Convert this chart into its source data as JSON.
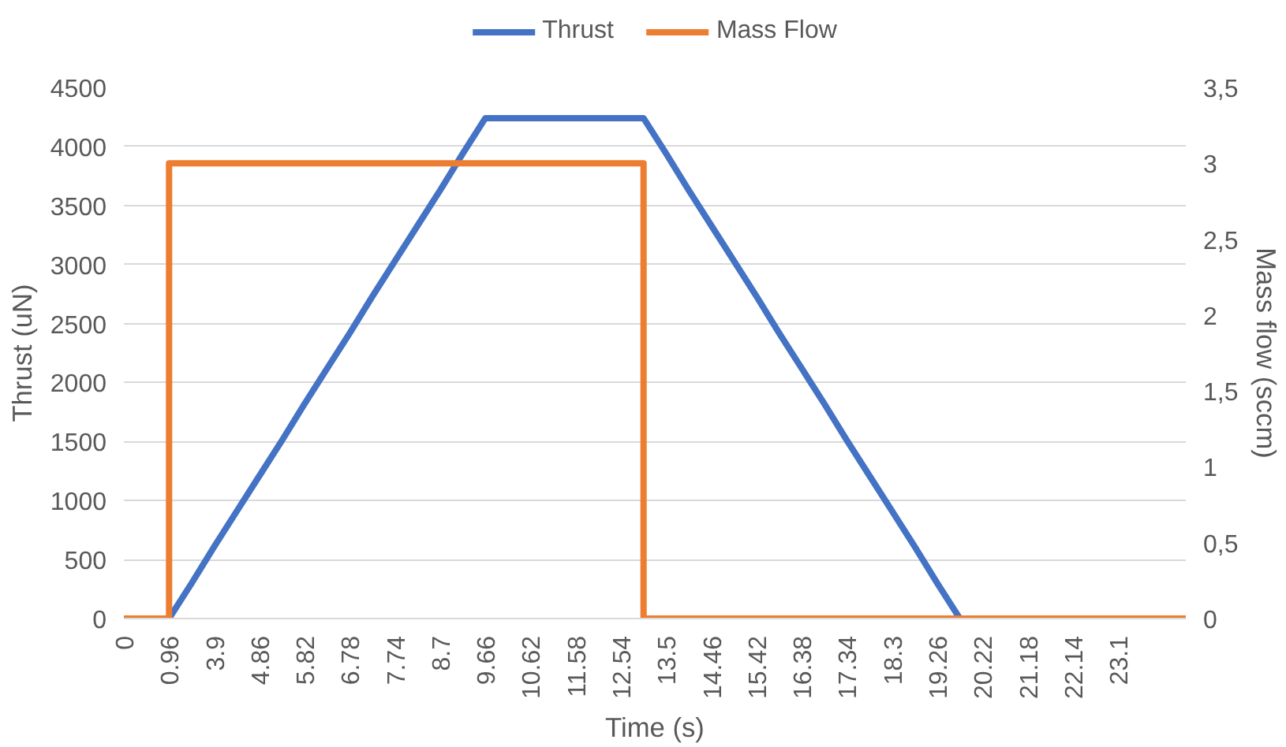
{
  "chart_data": {
    "type": "line",
    "xlabel": "Time (s)",
    "ylabel": "Thrust (uN)",
    "y2label": "Mass flow (sccm)",
    "categories": [
      "0",
      null,
      "0.96",
      null,
      "3.9",
      null,
      "4.86",
      null,
      "5.82",
      null,
      "6.78",
      null,
      "7.74",
      null,
      "8.7",
      null,
      "9.66",
      null,
      "10.62",
      null,
      "11.58",
      null,
      "12.54",
      null,
      "13.5",
      null,
      "14.46",
      null,
      "15.42",
      null,
      "16.38",
      null,
      "17.34",
      null,
      "18.3",
      null,
      "19.26",
      null,
      "20.22",
      null,
      "21.18",
      null,
      "22.14",
      null,
      "23.1",
      null,
      null,
      null
    ],
    "series": [
      {
        "name": "Thrust",
        "color": "#4472c4",
        "values": [
          null,
          null,
          0,
          300,
          610,
          910,
          1210,
          1510,
          1820,
          2120,
          2420,
          2730,
          3030,
          3330,
          3630,
          3940,
          4240,
          4240,
          4240,
          4240,
          4240,
          4240,
          4240,
          4240,
          3940,
          3630,
          3330,
          3030,
          2730,
          2420,
          2120,
          1820,
          1510,
          1210,
          910,
          610,
          300,
          0,
          null,
          null,
          null,
          null,
          null,
          null,
          null,
          null,
          null,
          null
        ]
      },
      {
        "name": "Mass Flow",
        "color": "#ed7d31",
        "type": "step",
        "axis": "y2",
        "values": [
          0,
          0,
          3,
          3,
          3,
          3,
          3,
          3,
          3,
          3,
          3,
          3,
          3,
          3,
          3,
          3,
          3,
          3,
          3,
          3,
          3,
          3,
          3,
          0,
          0,
          0,
          0,
          0,
          0,
          0,
          0,
          0,
          0,
          0,
          0,
          0,
          0,
          0,
          0,
          0,
          0,
          0,
          0,
          0,
          0,
          0,
          0,
          0
        ]
      }
    ],
    "ylim": [
      0,
      4500
    ],
    "yticks": [
      0,
      500,
      1000,
      1500,
      2000,
      2500,
      3000,
      3500,
      4000,
      4500
    ],
    "y2lim": [
      0,
      3.5
    ],
    "y2ticks": [
      0,
      {
        "value": 0.5,
        "label": "0,5"
      },
      1,
      {
        "value": 1.5,
        "label": "1,5"
      },
      2,
      {
        "value": 2.5,
        "label": "2,5"
      },
      3,
      {
        "value": 3.5,
        "label": "3,5"
      }
    ],
    "grid": "y",
    "legend": "top"
  }
}
